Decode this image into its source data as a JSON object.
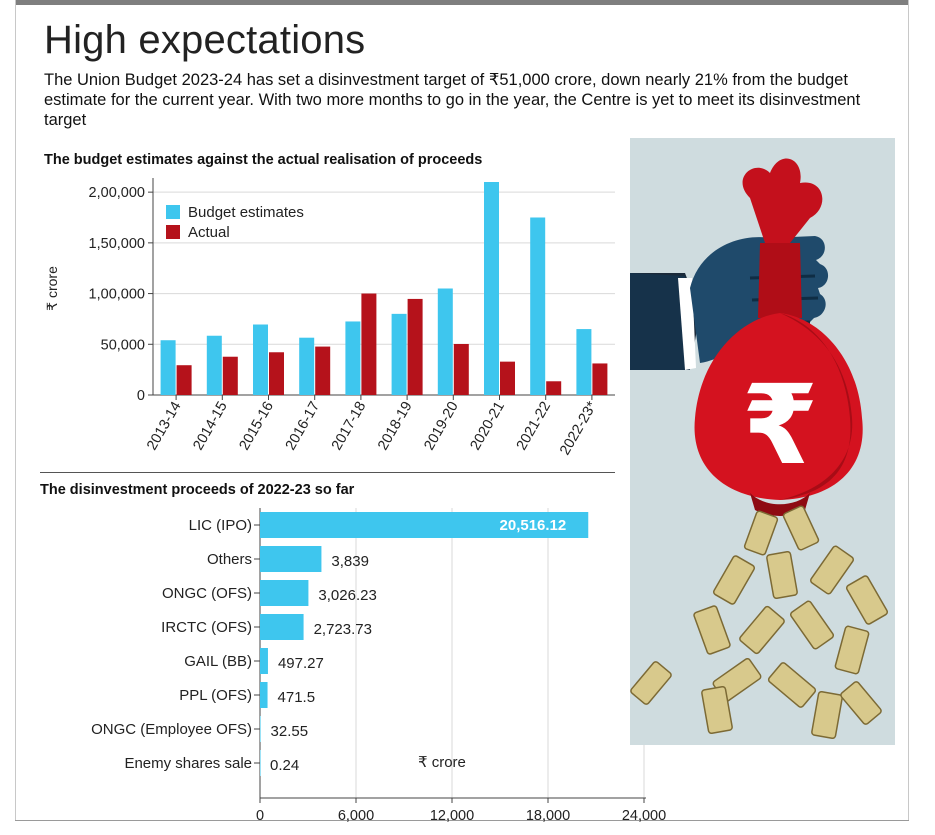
{
  "title": "High expectations",
  "subtitle": "The Union Budget 2023-24 has set a disinvestment target of ₹51,000 crore, down nearly 21% from the budget estimate for the current year.  With two more months to go in the year, the Centre is yet to meet its disinvestment target",
  "colors": {
    "budget": "#3ec6ee",
    "actual": "#b5121b",
    "hbar": "#3ec6ee"
  },
  "illustration": {
    "icon": "hand-holding-rupee-money-bag-icon",
    "symbol": "₹"
  },
  "chart_data": [
    {
      "type": "bar",
      "title": "The budget estimates against the actual realisation of proceeds",
      "ylabel": "₹ crore",
      "xlabel": "",
      "categories": [
        "2013-14",
        "2014-15",
        "2015-16",
        "2016-17",
        "2017-18",
        "2018-19",
        "2019-20",
        "2020-21",
        "2021-22",
        "2022-23*"
      ],
      "series": [
        {
          "name": "Budget estimates",
          "values": [
            54000,
            58425,
            69500,
            56500,
            72500,
            80000,
            105000,
            210000,
            175000,
            65000
          ]
        },
        {
          "name": "Actual",
          "values": [
            29368,
            37737,
            42132,
            47743,
            100045,
            94727,
            50299,
            32886,
            13534,
            31106
          ]
        }
      ],
      "ylim": [
        0,
        210000
      ],
      "yticks": [
        0,
        50000,
        100000,
        150000,
        200000
      ],
      "ytick_labels": [
        "0",
        "50,000",
        "1,00,000",
        "1,50,000",
        "2,00,000"
      ],
      "legend": "top-left",
      "grid": true
    },
    {
      "type": "bar",
      "orientation": "horizontal",
      "title": "The disinvestment proceeds of 2022-23 so far",
      "unit_label": "₹ crore",
      "categories": [
        "LIC (IPO)",
        "Others",
        "ONGC (OFS)",
        "IRCTC (OFS)",
        "GAIL (BB)",
        "PPL (OFS)",
        "ONGC (Employee OFS)",
        "Enemy shares sale"
      ],
      "values": [
        20516.12,
        3839,
        3026.23,
        2723.73,
        497.27,
        471.5,
        32.55,
        0.24
      ],
      "value_labels": [
        "20,516.12",
        "3,839",
        "3,026.23",
        "2,723.73",
        "497.27",
        "471.5",
        "32.55",
        "0.24"
      ],
      "xlim": [
        0,
        24000
      ],
      "xticks": [
        0,
        6000,
        12000,
        18000,
        24000
      ],
      "xtick_labels": [
        "0",
        "6,000",
        "12,000",
        "18,000",
        "24,000"
      ],
      "grid": true
    }
  ]
}
